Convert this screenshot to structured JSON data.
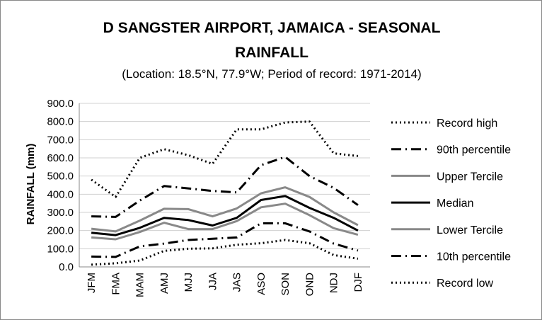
{
  "chart_data": {
    "type": "line",
    "title_line1": "D SANGSTER AIRPORT, JAMAICA - SEASONAL",
    "title_line2": "RAINFALL",
    "subtitle": "(Location: 18.5°N, 77.9°W; Period of record: 1971-2014)",
    "xlabel": "",
    "ylabel": "RAINFALL (mm)",
    "ylim": [
      0,
      900
    ],
    "ytick_labels": [
      "0.0",
      "100.0",
      "200.0",
      "300.0",
      "400.0",
      "500.0",
      "600.0",
      "700.0",
      "800.0",
      "900.0"
    ],
    "categories": [
      "JFM",
      "FMA",
      "MAM",
      "AMJ",
      "MJJ",
      "JJA",
      "JAS",
      "ASO",
      "SON",
      "OND",
      "NDJ",
      "DJF"
    ],
    "grid": true,
    "legend_position": "right",
    "series": [
      {
        "name": "Record high",
        "color": "#000000",
        "style": "dotted",
        "values": [
          480,
          385,
          600,
          648,
          615,
          567,
          757,
          757,
          795,
          800,
          625,
          610
        ]
      },
      {
        "name": "90th percentile",
        "color": "#000000",
        "style": "dashdot",
        "values": [
          278,
          275,
          365,
          445,
          432,
          418,
          410,
          560,
          605,
          500,
          435,
          340
        ]
      },
      {
        "name": "Upper Tercile",
        "color": "#898989",
        "style": "solid",
        "values": [
          210,
          195,
          255,
          320,
          318,
          278,
          322,
          405,
          438,
          385,
          300,
          230
        ]
      },
      {
        "name": "Median",
        "color": "#000000",
        "style": "solid",
        "values": [
          188,
          175,
          215,
          270,
          258,
          228,
          270,
          368,
          390,
          325,
          270,
          200
        ]
      },
      {
        "name": "Lower Tercile",
        "color": "#898989",
        "style": "solid",
        "values": [
          162,
          152,
          192,
          243,
          208,
          208,
          252,
          328,
          348,
          285,
          213,
          177
        ]
      },
      {
        "name": "10th percentile",
        "color": "#000000",
        "style": "dashdot",
        "values": [
          57,
          55,
          113,
          128,
          148,
          155,
          162,
          240,
          240,
          195,
          128,
          90
        ]
      },
      {
        "name": "Record low",
        "color": "#000000",
        "style": "dotted",
        "values": [
          12,
          20,
          35,
          88,
          100,
          102,
          122,
          130,
          148,
          130,
          65,
          45
        ]
      }
    ]
  }
}
